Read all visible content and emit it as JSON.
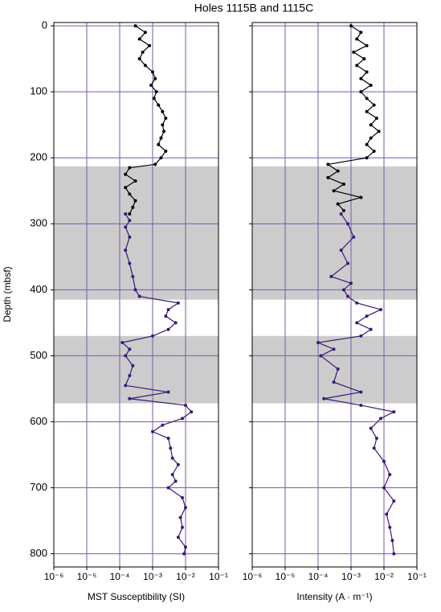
{
  "title": "Holes 1115B and 1115C",
  "chart_data": [
    {
      "type": "line",
      "xlabel": "MST Susceptibility (SI)",
      "ylabel": "Depth (mbsf)",
      "xlim": [
        1e-06,
        0.1
      ],
      "xticks": [
        {
          "value": 1e-06,
          "label": "10⁻⁶"
        },
        {
          "value": 1e-05,
          "label": "10⁻⁵"
        },
        {
          "value": 0.0001,
          "label": "10⁻⁴"
        },
        {
          "value": 0.001,
          "label": "10⁻³"
        },
        {
          "value": 0.01,
          "label": "10⁻²"
        },
        {
          "value": 0.1,
          "label": "10⁻¹"
        }
      ],
      "x_log": true,
      "ylim": [
        -5,
        820
      ],
      "y_inverted": true,
      "yticks": [
        0,
        100,
        200,
        300,
        400,
        500,
        600,
        700,
        800
      ],
      "grid": true,
      "shaded_ranges": [
        [
          213,
          415
        ],
        [
          470,
          572
        ]
      ],
      "series": [
        {
          "color": "#000000",
          "depth": [
            0,
            10,
            20,
            30,
            40,
            50,
            60,
            70,
            80,
            90,
            100,
            110,
            120,
            130,
            140,
            150,
            160,
            170,
            180,
            190,
            200,
            210,
            215,
            225,
            235,
            245,
            255,
            265,
            275,
            285
          ],
          "values": [
            0.0003,
            0.0006,
            0.0004,
            0.0008,
            0.0005,
            0.0004,
            0.0006,
            0.001,
            0.0012,
            0.0009,
            0.0013,
            0.0011,
            0.0015,
            0.002,
            0.0025,
            0.002,
            0.0022,
            0.0018,
            0.0015,
            0.0025,
            0.0018,
            0.0012,
            0.0002,
            0.00015,
            0.0003,
            0.00015,
            0.0002,
            0.0003,
            0.00025,
            0.0002
          ]
        },
        {
          "color": "#3a1a78",
          "depth": [
            285,
            295,
            305,
            320,
            340,
            360,
            380,
            400,
            410,
            420,
            430,
            440,
            450,
            460,
            470,
            480,
            490,
            500,
            515,
            530,
            545,
            555,
            565,
            575,
            585,
            595,
            605,
            615,
            625,
            640,
            655,
            665,
            680,
            690,
            700,
            715,
            730,
            745,
            760,
            775,
            790,
            800
          ],
          "values": [
            0.00015,
            0.0002,
            0.00015,
            0.0002,
            0.00015,
            0.0002,
            0.00025,
            0.0003,
            0.0004,
            0.006,
            0.003,
            0.0025,
            0.005,
            0.003,
            0.001,
            0.00012,
            0.0002,
            0.00015,
            0.00025,
            0.0002,
            0.00015,
            0.003,
            0.0002,
            0.01,
            0.015,
            0.008,
            0.002,
            0.001,
            0.003,
            0.0035,
            0.004,
            0.006,
            0.004,
            0.005,
            0.003,
            0.008,
            0.01,
            0.007,
            0.008,
            0.006,
            0.01,
            0.009
          ]
        }
      ]
    },
    {
      "type": "line",
      "xlabel": "Intensity (A · m⁻¹)",
      "xlim": [
        1e-06,
        0.1
      ],
      "xticks": [
        {
          "value": 1e-06,
          "label": "10⁻⁶"
        },
        {
          "value": 1e-05,
          "label": "10⁻⁵"
        },
        {
          "value": 0.0001,
          "label": "10⁻⁴"
        },
        {
          "value": 0.001,
          "label": "10⁻³"
        },
        {
          "value": 0.01,
          "label": "10⁻²"
        },
        {
          "value": 0.1,
          "label": "10⁻¹"
        }
      ],
      "x_log": true,
      "ylim": [
        -5,
        820
      ],
      "y_inverted": true,
      "yticks": [
        0,
        100,
        200,
        300,
        400,
        500,
        600,
        700,
        800
      ],
      "grid": true,
      "shaded_ranges": [
        [
          213,
          415
        ],
        [
          470,
          572
        ]
      ],
      "series": [
        {
          "color": "#000000",
          "depth": [
            0,
            10,
            20,
            30,
            40,
            50,
            60,
            70,
            80,
            90,
            100,
            110,
            120,
            130,
            140,
            150,
            160,
            170,
            180,
            190,
            200,
            210,
            220,
            230,
            240,
            250,
            260,
            270,
            280
          ],
          "values": [
            0.001,
            0.002,
            0.0015,
            0.003,
            0.0012,
            0.0025,
            0.0015,
            0.003,
            0.002,
            0.004,
            0.002,
            0.003,
            0.005,
            0.003,
            0.006,
            0.004,
            0.007,
            0.004,
            0.003,
            0.005,
            0.003,
            0.0002,
            0.0004,
            0.0002,
            0.0006,
            0.0003,
            0.002,
            0.0004,
            0.0006
          ]
        },
        {
          "color": "#3a1a78",
          "depth": [
            285,
            300,
            320,
            340,
            360,
            380,
            390,
            400,
            410,
            420,
            430,
            440,
            450,
            460,
            470,
            480,
            490,
            500,
            520,
            540,
            555,
            565,
            575,
            585,
            595,
            610,
            625,
            640,
            660,
            680,
            700,
            720,
            740,
            760,
            780,
            800
          ],
          "values": [
            0.0005,
            0.0008,
            0.0012,
            0.0005,
            0.0008,
            0.00025,
            0.001,
            0.0006,
            0.0008,
            0.0015,
            0.008,
            0.003,
            0.0015,
            0.004,
            0.002,
            0.0001,
            0.0003,
            0.00012,
            0.0004,
            0.0003,
            0.002,
            0.00015,
            0.002,
            0.02,
            0.008,
            0.004,
            0.006,
            0.005,
            0.01,
            0.015,
            0.01,
            0.02,
            0.012,
            0.015,
            0.018,
            0.02
          ]
        }
      ]
    }
  ]
}
